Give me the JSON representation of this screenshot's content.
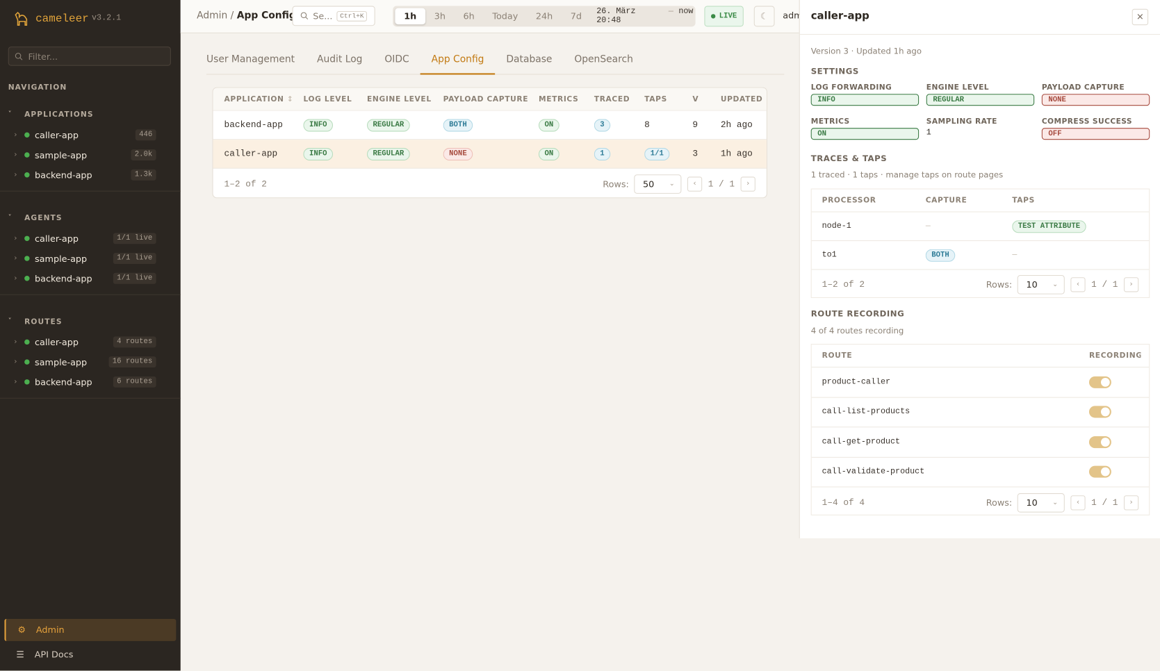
{
  "sidebar": {
    "brand": "cameleer",
    "version": "v3.2.1",
    "filter_placeholder": "Filter...",
    "navigation_label": "NAVIGATION",
    "sections": [
      {
        "title": "APPLICATIONS",
        "items": [
          {
            "name": "caller-app",
            "badge": 446
          },
          {
            "name": "sample-app",
            "badge": "2.0k"
          },
          {
            "name": "backend-app",
            "badge": "1.3k"
          }
        ]
      },
      {
        "title": "AGENTS",
        "items": [
          {
            "name": "caller-app",
            "badge": "1/1 live"
          },
          {
            "name": "sample-app",
            "badge": "1/1 live"
          },
          {
            "name": "backend-app",
            "badge": "1/1 live"
          }
        ]
      },
      {
        "title": "ROUTES",
        "items": [
          {
            "name": "caller-app",
            "badge": "4 routes"
          },
          {
            "name": "sample-app",
            "badge": "16 routes"
          },
          {
            "name": "backend-app",
            "badge": "6 routes"
          }
        ]
      }
    ],
    "footer": [
      "Admin",
      "API Docs"
    ]
  },
  "topbar": {
    "breadcrumb": [
      "Admin",
      "App Config"
    ],
    "search_placeholder": "Se...",
    "search_shortcut": "Ctrl+K",
    "time_ranges": [
      "1h",
      "3h",
      "6h",
      "Today",
      "24h",
      "7d"
    ],
    "date_from": "26. März 20:48",
    "date_separator": "—",
    "date_to": "now",
    "live": "LIVE",
    "user": "adm"
  },
  "tabs": [
    "User Management",
    "Audit Log",
    "OIDC",
    "App Config",
    "Database",
    "OpenSearch"
  ],
  "table": {
    "columns": [
      "APPLICATION",
      "LOG LEVEL",
      "ENGINE LEVEL",
      "PAYLOAD CAPTURE",
      "METRICS",
      "TRACED",
      "TAPS",
      "V",
      "UPDATED"
    ],
    "rows": [
      [
        "backend-app",
        {
          "text": "INFO",
          "color": "green"
        },
        {
          "text": "REGULAR",
          "color": "green"
        },
        {
          "text": "BOTH",
          "color": "blue"
        },
        {
          "text": "ON",
          "color": "green"
        },
        {
          "text": 3,
          "color": "blue"
        },
        8,
        9,
        "2h ago"
      ],
      [
        "caller-app",
        {
          "text": "INFO",
          "color": "green"
        },
        {
          "text": "REGULAR",
          "color": "green"
        },
        {
          "text": "NONE",
          "color": "red"
        },
        {
          "text": "ON",
          "color": "green"
        },
        {
          "text": 1,
          "color": "blue"
        },
        {
          "text": "1/1",
          "color": "blue"
        },
        3,
        "1h ago"
      ]
    ],
    "count": "1–2 of 2",
    "rows_label": "Rows:",
    "rows_per_page": 50,
    "page": "1 / 1"
  },
  "panel": {
    "title": "caller-app",
    "meta": "Version 3 · Updated 1h ago",
    "settings_title": "SETTINGS",
    "settings": [
      {
        "label": "LOG FORWARDING",
        "value": "INFO",
        "color": "green"
      },
      {
        "label": "ENGINE LEVEL",
        "value": "REGULAR",
        "color": "green"
      },
      {
        "label": "PAYLOAD CAPTURE",
        "value": "NONE",
        "color": "red"
      },
      {
        "label": "METRICS",
        "value": "ON",
        "color": "green"
      },
      {
        "label": "SAMPLING RATE",
        "value": 1
      },
      {
        "label": "COMPRESS SUCCESS",
        "value": "OFF",
        "color": "red"
      }
    ],
    "traces_title": "TRACES & TAPS",
    "traces_summary": "1 traced · 1 taps · manage taps on route pages",
    "traces": {
      "columns": [
        "PROCESSOR",
        "CAPTURE",
        "TAPS"
      ],
      "rows": [
        [
          "node-1",
          "—",
          {
            "text": "TEST ATTRIBUTE",
            "color": "green"
          }
        ],
        [
          "to1",
          {
            "text": "BOTH",
            "color": "blue"
          },
          "—"
        ]
      ],
      "count": "1–2 of 2",
      "rows_label": "Rows:",
      "rows_per_page": 10,
      "page": "1 / 1"
    },
    "routes_title": "ROUTE RECORDING",
    "routes_summary": "4 of 4 routes recording",
    "routes": {
      "columns": [
        "ROUTE",
        "RECORDING"
      ],
      "rows": [
        "product-caller",
        "call-list-products",
        "call-get-product",
        "call-validate-product"
      ],
      "count": "1–4 of 4",
      "rows_label": "Rows:",
      "rows_per_page": 10,
      "page": "1 / 1"
    }
  }
}
